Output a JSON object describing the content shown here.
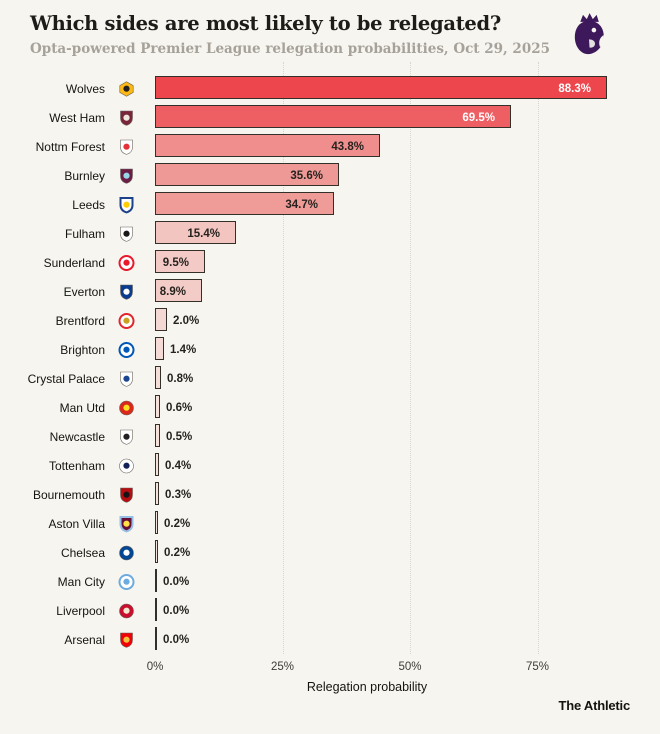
{
  "header": {
    "title": "Which sides are most likely to be relegated?",
    "subtitle": "Opta-powered Premier League relegation probabilities, Oct 29, 2025",
    "logo_color": "#3d195b"
  },
  "chart_data": {
    "type": "bar",
    "orientation": "horizontal",
    "title": "Which sides are most likely to be relegated?",
    "subtitle": "Opta-powered Premier League relegation probabilities, Oct 29, 2025",
    "xlabel": "Relegation probability",
    "xlim": [
      0,
      100
    ],
    "x_ticks": [
      {
        "value": 0,
        "label": "0%"
      },
      {
        "value": 25,
        "label": "25%"
      },
      {
        "value": 50,
        "label": "50%"
      },
      {
        "value": 75,
        "label": "75%"
      }
    ],
    "grid": "vertical-dotted-at-25-50-75",
    "categories": [
      "Wolves",
      "West Ham",
      "Nottm Forest",
      "Burnley",
      "Leeds",
      "Fulham",
      "Sunderland",
      "Everton",
      "Brentford",
      "Brighton",
      "Crystal Palace",
      "Man Utd",
      "Newcastle",
      "Tottenham",
      "Bournemouth",
      "Aston Villa",
      "Chelsea",
      "Man City",
      "Liverpool",
      "Arsenal"
    ],
    "values": [
      88.3,
      69.5,
      43.8,
      35.6,
      34.7,
      15.4,
      9.5,
      8.9,
      2.0,
      1.4,
      0.8,
      0.6,
      0.5,
      0.4,
      0.3,
      0.2,
      0.2,
      0.0,
      0.0,
      0.0
    ],
    "bar_border_color": "#332f29",
    "bars": [
      {
        "team": "Wolves",
        "value": 88.3,
        "label": "88.3%",
        "label_style": "inside-white",
        "color": "#ee464d",
        "crest": {
          "shape": "hex",
          "bg": "#fdb913",
          "emblem": "#231f20"
        }
      },
      {
        "team": "West Ham",
        "value": 69.5,
        "label": "69.5%",
        "label_style": "inside-white",
        "color": "#ed5f63",
        "crest": {
          "shape": "shield",
          "bg": "#7a263a",
          "emblem": "#f0e7dc"
        }
      },
      {
        "team": "Nottm Forest",
        "value": 43.8,
        "label": "43.8%",
        "label_style": "inside-dark",
        "color": "#f08e8d",
        "crest": {
          "shape": "shield",
          "bg": "#ffffff",
          "emblem": "#e53138"
        }
      },
      {
        "team": "Burnley",
        "value": 35.6,
        "label": "35.6%",
        "label_style": "inside-dark",
        "color": "#ef9996",
        "crest": {
          "shape": "shield",
          "bg": "#6c1d45",
          "emblem": "#99d6ea"
        }
      },
      {
        "team": "Leeds",
        "value": 34.7,
        "label": "34.7%",
        "label_style": "inside-dark",
        "color": "#ef9b98",
        "crest": {
          "shape": "shield",
          "bg": "#ffffff",
          "emblem": "#ffcd00",
          "ring": "#1d428a"
        }
      },
      {
        "team": "Fulham",
        "value": 15.4,
        "label": "15.4%",
        "label_style": "inside-dark",
        "color": "#f3c5c1",
        "crest": {
          "shape": "shield",
          "bg": "#ffffff",
          "emblem": "#1a1a1a"
        }
      },
      {
        "team": "Sunderland",
        "value": 9.5,
        "label": "9.5%",
        "label_style": "inside-dark",
        "color": "#f3cac6",
        "crest": {
          "shape": "circle",
          "bg": "#ffffff",
          "emblem": "#eb172b",
          "ring": "#eb172b"
        }
      },
      {
        "team": "Everton",
        "value": 8.9,
        "label": "8.9%",
        "label_style": "inside-dark",
        "color": "#f3cbc7",
        "crest": {
          "shape": "shield",
          "bg": "#0b3b8f",
          "emblem": "#ffffff"
        }
      },
      {
        "team": "Brentford",
        "value": 2.0,
        "label": "2.0%",
        "label_style": "outside",
        "color": "#f4d8d3",
        "crest": {
          "shape": "circle",
          "bg": "#ffffff",
          "emblem": "#caa11f",
          "ring": "#e0252d"
        }
      },
      {
        "team": "Brighton",
        "value": 1.4,
        "label": "1.4%",
        "label_style": "outside",
        "color": "#f5dad5",
        "crest": {
          "shape": "circle",
          "bg": "#ffffff",
          "emblem": "#0057b8",
          "ring": "#0057b8"
        }
      },
      {
        "team": "Crystal Palace",
        "value": 0.8,
        "label": "0.8%",
        "label_style": "outside",
        "color": "#f5ded8",
        "crest": {
          "shape": "shield",
          "bg": "#ffffff",
          "emblem": "#1b458f"
        }
      },
      {
        "team": "Man Utd",
        "value": 0.6,
        "label": "0.6%",
        "label_style": "outside",
        "color": "#f5e0da",
        "crest": {
          "shape": "circle",
          "bg": "#da291c",
          "emblem": "#fbe122"
        }
      },
      {
        "team": "Newcastle",
        "value": 0.5,
        "label": "0.5%",
        "label_style": "outside",
        "color": "#f6e1db",
        "crest": {
          "shape": "shield",
          "bg": "#ffffff",
          "emblem": "#241f20"
        }
      },
      {
        "team": "Tottenham",
        "value": 0.4,
        "label": "0.4%",
        "label_style": "outside",
        "color": "#f6e2dc",
        "crest": {
          "shape": "circle",
          "bg": "#ffffff",
          "emblem": "#132257"
        }
      },
      {
        "team": "Bournemouth",
        "value": 0.3,
        "label": "0.3%",
        "label_style": "outside",
        "color": "#f6e3dd",
        "crest": {
          "shape": "shield",
          "bg": "#b50d12",
          "emblem": "#141414"
        }
      },
      {
        "team": "Aston Villa",
        "value": 0.2,
        "label": "0.2%",
        "label_style": "outside",
        "color": "#f6e4de",
        "crest": {
          "shape": "shield",
          "bg": "#670e36",
          "emblem": "#ffe046",
          "ring": "#95bfe5"
        }
      },
      {
        "team": "Chelsea",
        "value": 0.2,
        "label": "0.2%",
        "label_style": "outside",
        "color": "#f6e4de",
        "crest": {
          "shape": "circle",
          "bg": "#034694",
          "emblem": "#ffffff"
        }
      },
      {
        "team": "Man City",
        "value": 0.0,
        "label": "0.0%",
        "label_style": "outside",
        "color": "#f6f5f0",
        "crest": {
          "shape": "circle",
          "bg": "#ffffff",
          "emblem": "#6cabdd",
          "ring": "#6cabdd"
        }
      },
      {
        "team": "Liverpool",
        "value": 0.0,
        "label": "0.0%",
        "label_style": "outside",
        "color": "#f6f5f0",
        "crest": {
          "shape": "circle",
          "bg": "#c8102e",
          "emblem": "#f1e8cf"
        }
      },
      {
        "team": "Arsenal",
        "value": 0.0,
        "label": "0.0%",
        "label_style": "outside",
        "color": "#f6f5f0",
        "crest": {
          "shape": "shield",
          "bg": "#ef0107",
          "emblem": "#f5c13d"
        }
      }
    ]
  },
  "footer": {
    "brand": "The Athletic"
  }
}
